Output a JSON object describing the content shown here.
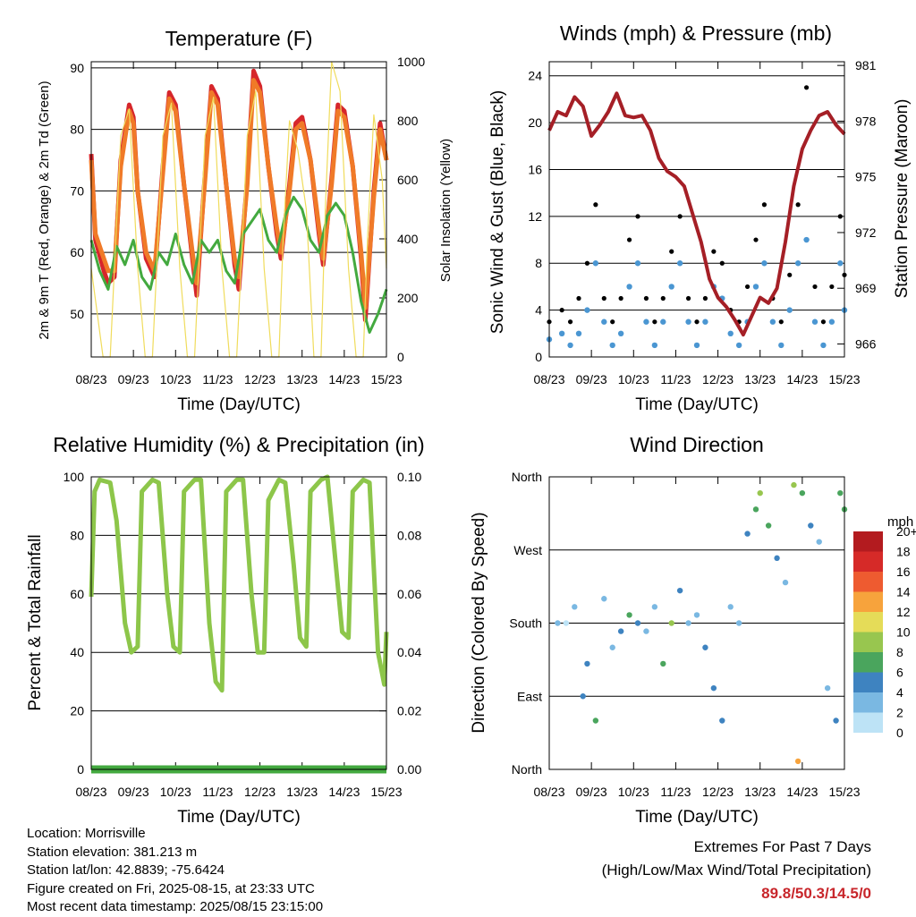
{
  "chart_data": [
    {
      "type": "line",
      "title": "Temperature (F)",
      "xlabel": "Time (Day/UTC)",
      "ylabel": "2m & 9m T (Red, Orange) & 2m Td (Green)",
      "y2label": "Solar Insolation (Yellow)",
      "x_ticks": [
        "08/23",
        "09/23",
        "10/23",
        "11/23",
        "12/23",
        "13/23",
        "14/23",
        "15/23"
      ],
      "ylim": [
        43,
        91
      ],
      "y_ticks": [
        50,
        60,
        70,
        80,
        90
      ],
      "y2lim": [
        0,
        1000
      ],
      "y2_ticks": [
        0,
        200,
        400,
        600,
        800,
        1000
      ],
      "series": [
        {
          "name": "2m T",
          "color": "#d6262b",
          "axis": "y",
          "x": [
            0,
            0.1,
            0.3,
            0.4,
            0.55,
            0.7,
            0.9,
            1.0,
            1.1,
            1.3,
            1.5,
            1.7,
            1.85,
            2.0,
            2.2,
            2.4,
            2.5,
            2.7,
            2.85,
            3.0,
            3.2,
            3.4,
            3.5,
            3.7,
            3.85,
            4.0,
            4.2,
            4.4,
            4.5,
            4.7,
            4.85,
            5.0,
            5.2,
            5.4,
            5.5,
            5.7,
            5.85,
            6.0,
            6.2,
            6.4,
            6.5,
            6.7,
            6.85,
            7.0
          ],
          "y": [
            76,
            62,
            57,
            55,
            56,
            75,
            84,
            82,
            70,
            59,
            56,
            74,
            86,
            84,
            71,
            59,
            53,
            73,
            87,
            85,
            71,
            58,
            54,
            72,
            89.5,
            87,
            74,
            63,
            59,
            71,
            81,
            82,
            75,
            63,
            58,
            72,
            84,
            83,
            74,
            59,
            49,
            70,
            81,
            75
          ]
        },
        {
          "name": "9m T",
          "color": "#f07a28",
          "axis": "y",
          "x": [
            0,
            0.1,
            0.3,
            0.4,
            0.55,
            0.7,
            0.9,
            1.0,
            1.1,
            1.3,
            1.5,
            1.7,
            1.85,
            2.0,
            2.2,
            2.4,
            2.5,
            2.7,
            2.85,
            3.0,
            3.2,
            3.4,
            3.5,
            3.7,
            3.85,
            4.0,
            4.2,
            4.4,
            4.5,
            4.7,
            4.85,
            5.0,
            5.2,
            5.4,
            5.5,
            5.7,
            5.85,
            6.0,
            6.2,
            6.4,
            6.5,
            6.7,
            6.85,
            7.0
          ],
          "y": [
            75,
            63,
            59,
            57,
            57,
            74,
            83,
            81,
            70,
            60,
            57,
            73,
            85,
            83,
            71,
            60,
            55,
            72,
            86,
            84,
            71,
            59,
            56,
            71,
            88,
            86,
            74,
            64,
            60,
            70,
            80,
            81,
            75,
            64,
            59,
            71,
            83,
            82,
            74,
            60,
            51,
            69,
            80,
            75
          ]
        },
        {
          "name": "2m Td",
          "color": "#43a93f",
          "axis": "y",
          "x": [
            0,
            0.2,
            0.4,
            0.6,
            0.8,
            1.0,
            1.2,
            1.4,
            1.6,
            1.8,
            2.0,
            2.2,
            2.4,
            2.6,
            2.8,
            3.0,
            3.2,
            3.4,
            3.6,
            3.8,
            4.0,
            4.2,
            4.4,
            4.6,
            4.8,
            5.0,
            5.2,
            5.4,
            5.6,
            5.8,
            6.0,
            6.2,
            6.4,
            6.6,
            6.8,
            7.0
          ],
          "y": [
            62,
            57,
            54,
            61,
            58,
            62,
            56,
            54,
            60,
            58,
            63,
            58,
            55,
            62,
            60,
            62,
            57,
            55,
            63,
            65,
            67,
            62,
            60,
            66,
            69,
            67,
            62,
            60,
            66,
            68,
            66,
            60,
            52,
            47,
            50,
            54
          ]
        },
        {
          "name": "Solar Insolation",
          "color": "#f0dc5c",
          "axis": "y2",
          "x": [
            0,
            0.28,
            0.45,
            0.55,
            0.7,
            0.9,
            1.1,
            1.28,
            1.45,
            1.55,
            1.7,
            1.9,
            2.1,
            2.28,
            2.45,
            2.55,
            2.7,
            2.9,
            3.1,
            3.28,
            3.45,
            3.55,
            3.7,
            3.9,
            4.1,
            4.28,
            4.45,
            4.55,
            4.7,
            4.9,
            5.1,
            5.28,
            5.45,
            5.55,
            5.7,
            5.9,
            6.1,
            6.28,
            6.45,
            6.55,
            6.7,
            6.9,
            7.0
          ],
          "y": [
            300,
            0,
            0,
            300,
            750,
            840,
            300,
            0,
            0,
            300,
            750,
            860,
            300,
            0,
            0,
            300,
            750,
            880,
            300,
            0,
            0,
            300,
            750,
            900,
            300,
            0,
            0,
            400,
            800,
            700,
            500,
            0,
            0,
            500,
            1000,
            900,
            300,
            0,
            0,
            400,
            820,
            600,
            300
          ]
        }
      ]
    },
    {
      "type": "scatter",
      "title": "Winds (mph) & Pressure (mb)",
      "xlabel": "Time (Day/UTC)",
      "ylabel": "Sonic Wind & Gust (Blue, Black)",
      "y2label": "Station Pressure (Maroon)",
      "x_ticks": [
        "08/23",
        "09/23",
        "10/23",
        "11/23",
        "12/23",
        "13/23",
        "14/23",
        "15/23"
      ],
      "ylim": [
        0,
        25.2
      ],
      "y_ticks": [
        0,
        4,
        8,
        12,
        16,
        20,
        24
      ],
      "y2lim": [
        965.3,
        981.2
      ],
      "y2_ticks": [
        966,
        969,
        972,
        975,
        978,
        981
      ],
      "series": [
        {
          "name": "Sonic Wind",
          "color": "#4a96d2",
          "axis": "y",
          "x": [
            0,
            0.3,
            0.5,
            0.7,
            0.9,
            1.1,
            1.3,
            1.5,
            1.7,
            1.9,
            2.1,
            2.3,
            2.5,
            2.7,
            2.9,
            3.1,
            3.3,
            3.5,
            3.7,
            3.9,
            4.1,
            4.3,
            4.5,
            4.7,
            4.9,
            5.1,
            5.3,
            5.5,
            5.7,
            5.9,
            6.1,
            6.3,
            6.5,
            6.7,
            6.9,
            7.0
          ],
          "y": [
            1.5,
            2,
            1,
            2,
            4,
            8,
            3,
            1,
            2,
            6,
            8,
            3,
            1,
            3,
            6,
            8,
            3,
            1,
            3,
            6,
            5,
            2,
            1,
            3,
            6,
            8,
            3,
            1,
            4,
            8,
            10,
            3,
            1,
            3,
            8,
            4
          ]
        },
        {
          "name": "Gust",
          "color": "#000000",
          "axis": "y",
          "x": [
            0,
            0.3,
            0.5,
            0.7,
            0.9,
            1.1,
            1.3,
            1.5,
            1.7,
            1.9,
            2.1,
            2.3,
            2.5,
            2.7,
            2.9,
            3.1,
            3.3,
            3.5,
            3.7,
            3.9,
            4.1,
            4.3,
            4.5,
            4.7,
            4.9,
            5.1,
            5.3,
            5.5,
            5.7,
            5.9,
            6.1,
            6.3,
            6.5,
            6.7,
            6.9,
            7.0
          ],
          "y": [
            3,
            4,
            3,
            5,
            8,
            13,
            5,
            3,
            5,
            10,
            12,
            5,
            3,
            5,
            9,
            12,
            5,
            3,
            5,
            9,
            8,
            4,
            3,
            6,
            10,
            13,
            5,
            3,
            7,
            13,
            23,
            6,
            3,
            6,
            12,
            7
          ]
        },
        {
          "name": "Station Pressure",
          "color": "#a51f26",
          "axis": "y2",
          "x": [
            0,
            0.2,
            0.4,
            0.6,
            0.8,
            1.0,
            1.2,
            1.4,
            1.6,
            1.8,
            2.0,
            2.2,
            2.4,
            2.6,
            2.8,
            3.0,
            3.2,
            3.4,
            3.6,
            3.8,
            4.0,
            4.2,
            4.4,
            4.6,
            4.8,
            5.0,
            5.2,
            5.4,
            5.6,
            5.8,
            6.0,
            6.2,
            6.4,
            6.6,
            6.8,
            7.0
          ],
          "y": [
            977.5,
            978.5,
            978.3,
            979.3,
            978.8,
            977.2,
            977.8,
            978.5,
            979.5,
            978.3,
            978.2,
            978.3,
            977.5,
            976,
            975.3,
            975,
            974.5,
            973,
            971.5,
            969.5,
            968.5,
            968,
            967.3,
            966.5,
            967.5,
            968.5,
            968.2,
            969,
            971.5,
            974.5,
            976.5,
            977.5,
            978.3,
            978.5,
            977.8,
            977.3
          ]
        }
      ]
    },
    {
      "type": "line",
      "title": "Relative Humidity (%) & Precipitation (in)",
      "xlabel": "Time (Day/UTC)",
      "ylabel": "Percent & Total Rainfall",
      "x_ticks": [
        "08/23",
        "09/23",
        "10/23",
        "11/23",
        "12/23",
        "13/23",
        "14/23",
        "15/23"
      ],
      "ylim": [
        0,
        100
      ],
      "y_ticks": [
        0,
        20,
        40,
        60,
        80,
        100
      ],
      "y2lim": [
        0,
        0.1
      ],
      "y2_ticks": [
        "0.00",
        "0.02",
        "0.04",
        "0.06",
        "0.08",
        "0.10"
      ],
      "series": [
        {
          "name": "Relative Humidity",
          "color": "#8dc64a",
          "axis": "y",
          "x": [
            0,
            0.08,
            0.2,
            0.45,
            0.6,
            0.8,
            0.95,
            1.1,
            1.2,
            1.45,
            1.6,
            1.8,
            1.95,
            2.1,
            2.2,
            2.45,
            2.6,
            2.8,
            2.95,
            3.1,
            3.2,
            3.45,
            3.6,
            3.8,
            3.95,
            4.1,
            4.2,
            4.45,
            4.6,
            4.8,
            4.95,
            5.1,
            5.2,
            5.45,
            5.6,
            5.8,
            5.95,
            6.1,
            6.2,
            6.45,
            6.6,
            6.8,
            6.95,
            7.0
          ],
          "y": [
            59,
            95,
            99,
            98,
            85,
            50,
            40,
            42,
            95,
            99,
            98,
            60,
            42,
            40,
            95,
            99,
            99,
            50,
            30,
            27,
            95,
            99,
            99,
            60,
            40,
            40,
            92,
            99,
            98,
            70,
            45,
            42,
            95,
            99,
            100,
            70,
            47,
            45,
            95,
            99,
            98,
            40,
            29,
            47
          ]
        },
        {
          "name": "Total Rainfall",
          "color": "#43a93f",
          "axis": "y2",
          "x": [
            0,
            7.0
          ],
          "y": [
            0,
            0
          ]
        }
      ]
    },
    {
      "type": "scatter",
      "title": "Wind Direction",
      "xlabel": "Time (Day/UTC)",
      "ylabel": "Direction (Colored By Speed)",
      "x_ticks": [
        "08/23",
        "09/23",
        "10/23",
        "11/23",
        "12/23",
        "13/23",
        "14/23",
        "15/23"
      ],
      "y_ticks": [
        "North",
        "East",
        "South",
        "West",
        "North"
      ],
      "ylim": [
        0,
        360
      ],
      "colorbar": {
        "unit": "mph",
        "labels": [
          "20+",
          "18",
          "16",
          "14",
          "12",
          "10",
          "8",
          "6",
          "4",
          "2",
          "0"
        ],
        "colors": [
          "#b31b1f",
          "#d62a28",
          "#ee5b30",
          "#f7a33c",
          "#e5dc58",
          "#98c64f",
          "#4aa55d",
          "#3e83c0",
          "#7ab8e2",
          "#bde3f6"
        ]
      },
      "points": [
        [
          0.2,
          180,
          2
        ],
        [
          0.4,
          180,
          1
        ],
        [
          0.6,
          200,
          3
        ],
        [
          0.8,
          90,
          5
        ],
        [
          0.9,
          130,
          4
        ],
        [
          1.1,
          60,
          6
        ],
        [
          1.3,
          210,
          3
        ],
        [
          1.5,
          150,
          2
        ],
        [
          1.7,
          170,
          4
        ],
        [
          1.9,
          190,
          6
        ],
        [
          2.1,
          180,
          5
        ],
        [
          2.3,
          170,
          3
        ],
        [
          2.5,
          200,
          2
        ],
        [
          2.7,
          130,
          6
        ],
        [
          2.9,
          180,
          8
        ],
        [
          3.1,
          220,
          4
        ],
        [
          3.3,
          180,
          3
        ],
        [
          3.5,
          190,
          2
        ],
        [
          3.7,
          150,
          5
        ],
        [
          3.9,
          100,
          5
        ],
        [
          4.1,
          60,
          4
        ],
        [
          4.3,
          200,
          3
        ],
        [
          4.5,
          180,
          2
        ],
        [
          4.7,
          290,
          5
        ],
        [
          4.9,
          320,
          6
        ],
        [
          5.0,
          340,
          8
        ],
        [
          5.2,
          300,
          6
        ],
        [
          5.4,
          260,
          4
        ],
        [
          5.6,
          230,
          3
        ],
        [
          5.8,
          350,
          8
        ],
        [
          5.9,
          10,
          12
        ],
        [
          6.0,
          340,
          7
        ],
        [
          6.2,
          300,
          4
        ],
        [
          6.4,
          280,
          2
        ],
        [
          6.6,
          100,
          3
        ],
        [
          6.8,
          60,
          4
        ],
        [
          6.9,
          340,
          7
        ],
        [
          7.0,
          320,
          6
        ]
      ]
    }
  ],
  "info": {
    "location": "Location: Morrisville",
    "elevation": "Station elevation: 381.213 m",
    "latlon": "Station lat/lon: 42.8839; -75.6424",
    "created": "Figure created on Fri, 2025-08-15, at 23:33 UTC",
    "recent": "Most recent data timestamp: 2025/08/15 23:15:00"
  },
  "extremes": {
    "line1": "Extremes For Past 7 Days",
    "line2": "(High/Low/Max Wind/Total Precipitation)",
    "values": "89.8/50.3/14.5/0"
  }
}
